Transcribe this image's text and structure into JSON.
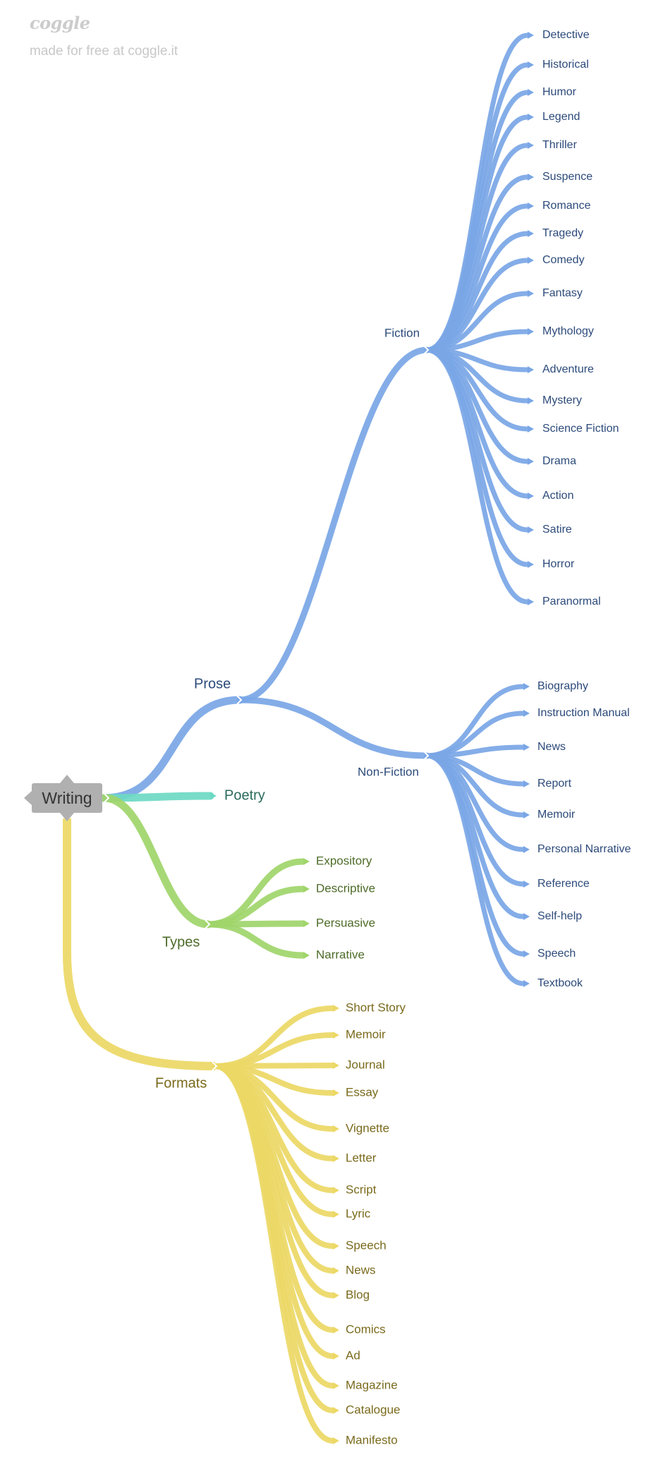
{
  "brand": {
    "logo": "coggle",
    "tagline": "made for free at coggle.it"
  },
  "colors": {
    "prose": "#7aa6e6",
    "poetry": "#6cd9c3",
    "types": "#9fd56a",
    "formats": "#ecd865",
    "prose_text": "#2c4a7a",
    "poetry_text": "#2a6a5c",
    "types_text": "#4d6b28",
    "formats_text": "#7a6a1c"
  },
  "root": {
    "label": "Writing"
  },
  "branches": {
    "prose": {
      "label": "Prose"
    },
    "poetry": {
      "label": "Poetry"
    },
    "types": {
      "label": "Types"
    },
    "formats": {
      "label": "Formats"
    },
    "fiction": {
      "label": "Fiction"
    },
    "nonfiction": {
      "label": "Non-Fiction"
    }
  },
  "lists": {
    "fiction": [
      "Detective",
      "Historical",
      "Humor",
      "Legend",
      "Thriller",
      "Suspence",
      "Romance",
      "Tragedy",
      "Comedy",
      "Fantasy",
      "Mythology",
      "Adventure",
      "Mystery",
      "Science Fiction",
      "Drama",
      "Action",
      "Satire",
      "Horror",
      "Paranormal"
    ],
    "nonfiction": [
      "Biography",
      "Instruction Manual",
      "News",
      "Report",
      "Memoir",
      "Personal Narrative",
      "Reference",
      "Self-help",
      "Speech",
      "Textbook"
    ],
    "types": [
      "Expository",
      "Descriptive",
      "Persuasive",
      "Narrative"
    ],
    "formats": [
      "Short Story",
      "Memoir",
      "Journal",
      "Essay",
      "Vignette",
      "Letter",
      "Script",
      "Lyric",
      "Speech",
      "News",
      "Blog",
      "Comics",
      "Ad",
      "Magazine",
      "Catalogue",
      "Manifesto"
    ]
  }
}
